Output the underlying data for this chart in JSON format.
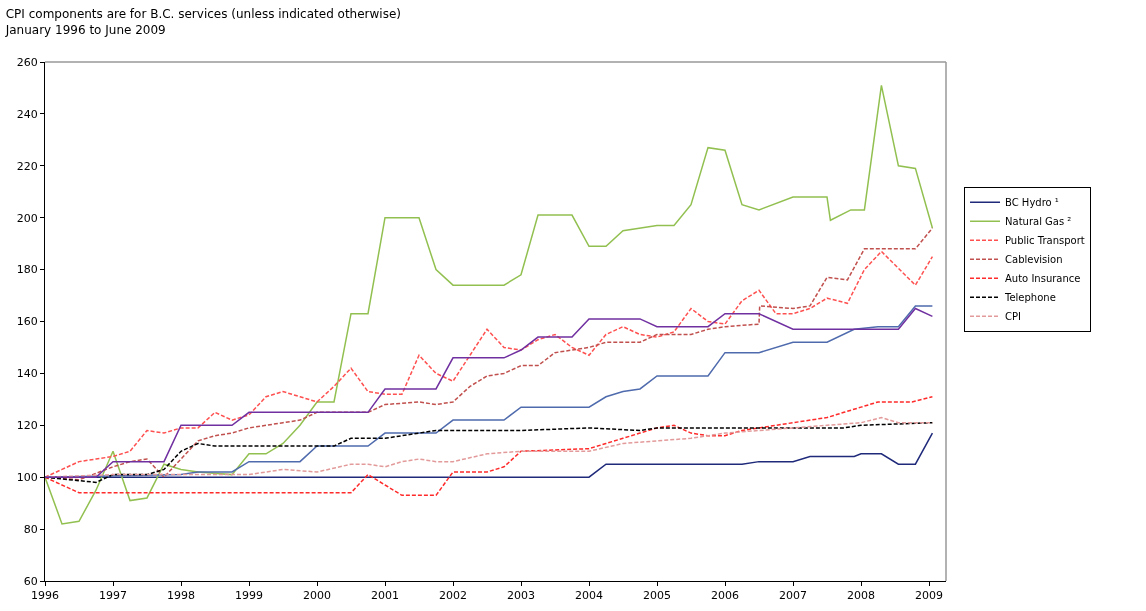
{
  "chart_data": {
    "type": "line",
    "title": "CPI components are for B.C. services (unless indicated otherwise)",
    "subtitle": "January 1996 to June 2009",
    "xlim": [
      1996,
      2009.25
    ],
    "xticks": [
      1996,
      1997,
      1998,
      1999,
      2000,
      2001,
      2002,
      2003,
      2004,
      2005,
      2006,
      2007,
      2008,
      2009
    ],
    "ylim": [
      60,
      260
    ],
    "yticks": [
      60,
      80,
      100,
      120,
      140,
      160,
      180,
      200,
      220,
      240,
      260
    ],
    "grid": false,
    "legend": "right",
    "marker": "none",
    "series": [
      {
        "name": "BC Hydro ¹",
        "color": "#1f2a7a",
        "line_style": "solid",
        "x": [
          1996,
          2004,
          2004.25,
          2006.25,
          2006.5,
          2007,
          2007.25,
          2007.9,
          2008,
          2008.3,
          2008.55,
          2008.8,
          2009.05
        ],
        "values": [
          100,
          100,
          105,
          105,
          106,
          106,
          108,
          108,
          109,
          109,
          105,
          105,
          117
        ]
      },
      {
        "name": "Natural Gas ²",
        "color": "#92c050",
        "line_style": "solid",
        "x": [
          1996,
          1996.25,
          1996.5,
          1996.75,
          1997,
          1997.25,
          1997.5,
          1997.75,
          1998,
          1998.25,
          1998.75,
          1999,
          1999.25,
          1999.5,
          1999.75,
          2000,
          2000.25,
          2000.5,
          2000.75,
          2001,
          2001.5,
          2001.75,
          2002,
          2002.75,
          2003,
          2003.25,
          2003.75,
          2004,
          2004.25,
          2004.5,
          2005,
          2005.25,
          2005.5,
          2005.75,
          2006,
          2006.25,
          2006.5,
          2007,
          2007.5,
          2007.55,
          2007.85,
          2008.05,
          2008.3,
          2008.55,
          2008.8,
          2009.05
        ],
        "values": [
          100,
          82,
          83,
          95,
          110,
          91,
          92,
          105,
          103,
          102,
          101,
          109,
          109,
          113,
          120,
          129,
          129,
          163,
          163,
          200,
          200,
          180,
          174,
          174,
          178,
          201,
          201,
          189,
          189,
          195,
          197,
          197,
          205,
          227,
          226,
          205,
          203,
          208,
          208,
          199,
          203,
          203,
          251,
          220,
          219,
          196
        ]
      },
      {
        "name": "Public Transport",
        "color": "#ff5050",
        "line_style": "dashed",
        "x": [
          1996,
          1996.25,
          1996.5,
          1996.75,
          1997,
          1997.25,
          1997.5,
          1997.75,
          1998,
          1998.25,
          1998.5,
          1998.75,
          1999,
          1999.25,
          1999.5,
          1999.75,
          2000,
          2000.25,
          2000.5,
          2000.75,
          2001,
          2001.25,
          2001.5,
          2001.75,
          2002,
          2002.25,
          2002.5,
          2002.75,
          2003,
          2003.25,
          2003.5,
          2003.75,
          2004,
          2004.25,
          2004.5,
          2004.75,
          2005,
          2005.25,
          2005.5,
          2005.75,
          2006,
          2006.25,
          2006.5,
          2006.75,
          2007,
          2007.25,
          2007.5,
          2007.8,
          2008.05,
          2008.3,
          2008.8,
          2009.05
        ],
        "values": [
          100,
          103,
          106,
          107,
          108,
          110,
          118,
          117,
          119,
          119,
          125,
          122,
          124,
          131,
          133,
          131,
          129,
          135,
          142,
          133,
          132,
          132,
          147,
          140,
          137,
          147,
          157,
          150,
          149,
          153,
          155,
          150,
          147,
          155,
          158,
          155,
          154,
          156,
          165,
          160,
          159,
          168,
          172,
          163,
          163,
          165,
          169,
          167,
          180,
          187,
          174,
          185
        ]
      },
      {
        "name": "Cablevision",
        "color": "#c0504d",
        "line_style": "dashed",
        "x": [
          1996,
          1996.5,
          1997,
          1997.25,
          1997.5,
          1997.75,
          1998,
          1998.25,
          1998.5,
          1998.75,
          1999,
          1999.25,
          1999.5,
          1999.75,
          2000,
          2000.75,
          2001,
          2001.5,
          2001.75,
          2002,
          2002.25,
          2002.5,
          2002.75,
          2003,
          2003.25,
          2003.5,
          2003.75,
          2004,
          2004.25,
          2004.75,
          2005,
          2005.5,
          2005.75,
          2006,
          2006.5,
          2006.51,
          2007,
          2007.25,
          2007.5,
          2007.8,
          2008.05,
          2008.8,
          2009.05
        ],
        "values": [
          100,
          99,
          104,
          106,
          107,
          100,
          107,
          114,
          116,
          117,
          119,
          120,
          121,
          122,
          125,
          125,
          128,
          129,
          128,
          129,
          135,
          139,
          140,
          143,
          143,
          148,
          149,
          150,
          152,
          152,
          155,
          155,
          157,
          158,
          159,
          166,
          165,
          166,
          177,
          176,
          188,
          188,
          196
        ]
      },
      {
        "color": "#4f6bad",
        "line_style": "solid",
        "x": [
          1996,
          1998,
          1998.25,
          1998.75,
          1999,
          1999.75,
          2000,
          2000.75,
          2001,
          2001.75,
          2002,
          2002.75,
          2003,
          2004,
          2004.25,
          2004.5,
          2004.75,
          2005,
          2005.75,
          2006,
          2006.5,
          2007,
          2007.5,
          2007.9,
          2008.25,
          2008.55,
          2008.8,
          2009.05
        ],
        "values": [
          100,
          101,
          102,
          102,
          106,
          106,
          112,
          112,
          117,
          117,
          122,
          122,
          127,
          127,
          131,
          133,
          134,
          139,
          139,
          148,
          148,
          152,
          152,
          157,
          158,
          158,
          166,
          166
        ]
      },
      {
        "name": "Auto Insurance",
        "color": "#ff2a2a",
        "line_style": "dashed",
        "x": [
          1996,
          1996.5,
          2000.5,
          2000.75,
          2001,
          2001.25,
          2001.75,
          2002,
          2002.5,
          2002.75,
          2003,
          2004,
          2004.25,
          2004.5,
          2004.75,
          2005,
          2005.25,
          2005.5,
          2005.75,
          2006,
          2006.25,
          2006.5,
          2007,
          2007.5,
          2007.75,
          2008,
          2008.25,
          2008.75,
          2009.05
        ],
        "values": [
          100,
          94,
          94,
          101,
          97,
          93,
          93,
          102,
          102,
          104,
          110,
          111,
          113,
          115,
          117,
          119,
          120,
          117,
          116,
          116,
          118,
          119,
          121,
          123,
          125,
          127,
          129,
          129,
          131
        ]
      },
      {
        "name": "Telephone",
        "color": "#000000",
        "line_style": "dashed",
        "x": [
          1996,
          1996.75,
          1997,
          1997.5,
          1997.75,
          1998,
          1998.25,
          1998.5,
          1999,
          2000.25,
          2000.5,
          2001,
          2001.5,
          2001.75,
          2003,
          2004,
          2004.75,
          2005,
          2007.75,
          2008,
          2009.05
        ],
        "values": [
          100,
          98,
          101,
          101,
          103,
          110,
          113,
          112,
          112,
          112,
          115,
          115,
          117,
          118,
          118,
          119,
          118,
          119,
          119,
          120,
          121
        ]
      },
      {
        "name": "CPI",
        "color": "#e39a9a",
        "line_style": "dashed",
        "x": [
          1996,
          1997,
          1998,
          1999,
          1999.5,
          2000,
          2000.5,
          2000.75,
          2001,
          2001.25,
          2001.5,
          2001.75,
          2002,
          2002.5,
          2003,
          2004,
          2004.5,
          2005,
          2005.5,
          2006,
          2006.5,
          2007,
          2007.5,
          2008,
          2008.3,
          2008.55,
          2009.05
        ],
        "values": [
          100,
          101,
          101,
          101,
          103,
          102,
          105,
          105,
          104,
          106,
          107,
          106,
          106,
          109,
          110,
          110,
          113,
          114,
          115,
          117,
          118,
          119,
          120,
          121,
          123,
          121,
          121
        ]
      },
      {
        "color": "#7030a0",
        "line_style": "solid",
        "x": [
          1996,
          1996.75,
          1997,
          1997.75,
          1998,
          1998.75,
          1999,
          2000.75,
          2001,
          2001.75,
          2002,
          2002.75,
          2003,
          2003.25,
          2003.75,
          2004,
          2004.75,
          2005,
          2005.75,
          2006,
          2006.5,
          2007,
          2008.55,
          2008.8,
          2009.05
        ],
        "values": [
          100,
          100,
          106,
          106,
          120,
          120,
          125,
          125,
          134,
          134,
          146,
          146,
          149,
          154,
          154,
          161,
          161,
          158,
          158,
          163,
          163,
          157,
          157,
          165,
          162
        ]
      }
    ]
  }
}
